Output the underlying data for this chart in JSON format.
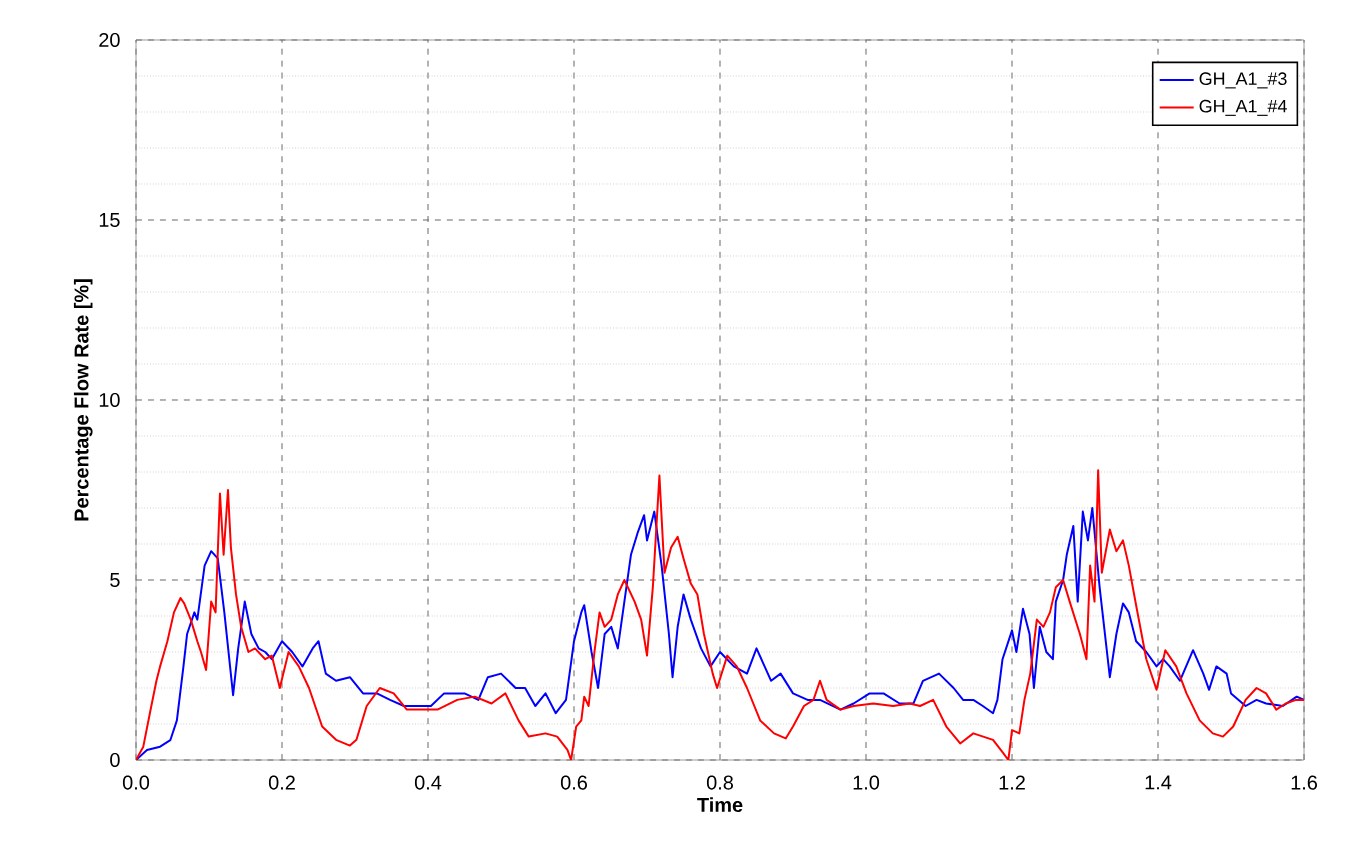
{
  "chart_data": {
    "type": "line",
    "xlabel": "Time",
    "ylabel": "Percentage Flow Rate [%]",
    "xlim": [
      0,
      1.6
    ],
    "ylim": [
      0,
      20
    ],
    "xticks": [
      {
        "value": 0,
        "label": "0.0"
      },
      {
        "value": 0.2,
        "label": "0.2"
      },
      {
        "value": 0.4,
        "label": "0.4"
      },
      {
        "value": 0.6,
        "label": "0.6"
      },
      {
        "value": 0.8,
        "label": "0.8"
      },
      {
        "value": 1.0,
        "label": "1.0"
      },
      {
        "value": 1.2,
        "label": "1.2"
      },
      {
        "value": 1.4,
        "label": "1.4"
      },
      {
        "value": 1.6,
        "label": "1.6"
      }
    ],
    "yticks": [
      0,
      5,
      10,
      15,
      20
    ],
    "grid": true,
    "legend": "top right",
    "marker": "none",
    "line_style": "solid",
    "series": [
      {
        "name": "GH_A1_#3",
        "color": "#0000ff",
        "x": [
          0,
          0.015,
          0.033,
          0.047,
          0.056,
          0.065,
          0.07,
          0.08,
          0.084,
          0.094,
          0.103,
          0.112,
          0.121,
          0.133,
          0.14,
          0.149,
          0.158,
          0.168,
          0.177,
          0.186,
          0.2,
          0.214,
          0.228,
          0.242,
          0.25,
          0.26,
          0.274,
          0.293,
          0.311,
          0.33,
          0.348,
          0.367,
          0.385,
          0.404,
          0.422,
          0.45,
          0.469,
          0.482,
          0.5,
          0.52,
          0.533,
          0.547,
          0.561,
          0.575,
          0.589,
          0.6,
          0.61,
          0.614,
          0.624,
          0.633,
          0.642,
          0.651,
          0.66,
          0.669,
          0.678,
          0.687,
          0.696,
          0.7,
          0.71,
          0.72,
          0.73,
          0.735,
          0.742,
          0.75,
          0.76,
          0.774,
          0.787,
          0.8,
          0.819,
          0.837,
          0.85,
          0.87,
          0.883,
          0.9,
          0.92,
          0.937,
          0.965,
          0.983,
          1.005,
          1.024,
          1.046,
          1.065,
          1.078,
          1.1,
          1.12,
          1.133,
          1.147,
          1.16,
          1.174,
          1.18,
          1.187,
          1.2,
          1.206,
          1.215,
          1.224,
          1.23,
          1.238,
          1.247,
          1.256,
          1.26,
          1.27,
          1.275,
          1.284,
          1.29,
          1.297,
          1.304,
          1.31,
          1.32,
          1.334,
          1.343,
          1.352,
          1.36,
          1.37,
          1.384,
          1.398,
          1.407,
          1.416,
          1.43,
          1.448,
          1.462,
          1.47,
          1.48,
          1.494,
          1.5,
          1.52,
          1.535,
          1.548,
          1.571,
          1.59,
          1.6
        ],
        "values": [
          0,
          0.28,
          0.37,
          0.55,
          1.1,
          2.6,
          3.5,
          4.1,
          3.9,
          5.4,
          5.8,
          5.6,
          4.1,
          1.8,
          3.1,
          4.4,
          3.5,
          3.1,
          3.0,
          2.8,
          3.3,
          3.0,
          2.6,
          3.1,
          3.3,
          2.4,
          2.2,
          2.3,
          1.85,
          1.85,
          1.67,
          1.5,
          1.5,
          1.5,
          1.85,
          1.85,
          1.67,
          2.3,
          2.4,
          2.0,
          2.0,
          1.5,
          1.85,
          1.3,
          1.67,
          3.3,
          4.1,
          4.3,
          3.0,
          2.0,
          3.5,
          3.7,
          3.1,
          4.4,
          5.7,
          6.3,
          6.8,
          6.1,
          6.9,
          5.4,
          3.5,
          2.3,
          3.7,
          4.6,
          3.9,
          3.1,
          2.6,
          3.0,
          2.6,
          2.4,
          3.1,
          2.2,
          2.4,
          1.85,
          1.67,
          1.67,
          1.4,
          1.57,
          1.85,
          1.85,
          1.57,
          1.57,
          2.2,
          2.4,
          2.0,
          1.67,
          1.67,
          1.5,
          1.3,
          1.67,
          2.8,
          3.6,
          3.0,
          4.2,
          3.5,
          2.0,
          3.7,
          3.0,
          2.8,
          4.4,
          5.0,
          5.7,
          6.5,
          4.4,
          6.9,
          6.1,
          7.0,
          4.8,
          2.3,
          3.5,
          4.35,
          4.1,
          3.3,
          3.0,
          2.6,
          2.8,
          2.6,
          2.2,
          3.05,
          2.4,
          1.95,
          2.6,
          2.4,
          1.85,
          1.5,
          1.67,
          1.57,
          1.5,
          1.76,
          1.67
        ]
      },
      {
        "name": "GH_A1_#4",
        "color": "#ff0000",
        "x": [
          0,
          0.01,
          0.019,
          0.028,
          0.033,
          0.043,
          0.052,
          0.061,
          0.066,
          0.075,
          0.084,
          0.089,
          0.096,
          0.103,
          0.109,
          0.115,
          0.12,
          0.126,
          0.13,
          0.137,
          0.144,
          0.154,
          0.163,
          0.177,
          0.186,
          0.197,
          0.209,
          0.223,
          0.237,
          0.255,
          0.274,
          0.293,
          0.302,
          0.316,
          0.334,
          0.353,
          0.371,
          0.39,
          0.413,
          0.44,
          0.464,
          0.487,
          0.506,
          0.524,
          0.538,
          0.561,
          0.577,
          0.591,
          0.596,
          0.603,
          0.61,
          0.614,
          0.62,
          0.628,
          0.635,
          0.642,
          0.651,
          0.66,
          0.669,
          0.683,
          0.692,
          0.7,
          0.708,
          0.717,
          0.724,
          0.733,
          0.742,
          0.75,
          0.76,
          0.769,
          0.778,
          0.79,
          0.796,
          0.81,
          0.823,
          0.837,
          0.855,
          0.874,
          0.89,
          0.9,
          0.915,
          0.928,
          0.937,
          0.946,
          0.965,
          0.983,
          1.01,
          1.037,
          1.06,
          1.074,
          1.092,
          1.11,
          1.129,
          1.147,
          1.174,
          1.188,
          1.195,
          1.2,
          1.21,
          1.217,
          1.225,
          1.234,
          1.243,
          1.252,
          1.26,
          1.27,
          1.279,
          1.293,
          1.302,
          1.307,
          1.313,
          1.318,
          1.323,
          1.334,
          1.343,
          1.352,
          1.36,
          1.37,
          1.384,
          1.398,
          1.41,
          1.425,
          1.439,
          1.457,
          1.475,
          1.489,
          1.503,
          1.52,
          1.535,
          1.548,
          1.562,
          1.575,
          1.589,
          1.6
        ],
        "values": [
          0,
          0.37,
          1.3,
          2.2,
          2.6,
          3.3,
          4.1,
          4.5,
          4.35,
          3.9,
          3.3,
          3.0,
          2.5,
          4.4,
          4.1,
          7.4,
          5.7,
          7.5,
          5.9,
          4.6,
          3.7,
          3.0,
          3.1,
          2.8,
          2.9,
          2.0,
          3.0,
          2.6,
          2.0,
          0.93,
          0.56,
          0.4,
          0.56,
          1.5,
          2.0,
          1.85,
          1.4,
          1.4,
          1.4,
          1.67,
          1.76,
          1.57,
          1.85,
          1.1,
          0.65,
          0.74,
          0.65,
          0.28,
          0.0,
          0.93,
          1.1,
          1.76,
          1.5,
          3.0,
          4.1,
          3.7,
          3.9,
          4.6,
          5.0,
          4.4,
          3.9,
          2.9,
          4.8,
          7.9,
          5.2,
          5.9,
          6.2,
          5.6,
          4.9,
          4.6,
          3.5,
          2.4,
          2.0,
          2.9,
          2.6,
          2.0,
          1.1,
          0.74,
          0.6,
          0.93,
          1.5,
          1.67,
          2.2,
          1.67,
          1.4,
          1.5,
          1.57,
          1.5,
          1.57,
          1.5,
          1.67,
          0.93,
          0.46,
          0.74,
          0.56,
          0.19,
          0,
          0.83,
          0.74,
          1.67,
          2.4,
          3.9,
          3.7,
          4.1,
          4.8,
          5.0,
          4.4,
          3.5,
          2.8,
          5.4,
          4.4,
          8.05,
          5.2,
          6.4,
          5.8,
          6.1,
          5.4,
          4.3,
          2.8,
          1.95,
          3.05,
          2.6,
          1.85,
          1.1,
          0.74,
          0.65,
          0.93,
          1.67,
          2.0,
          1.85,
          1.4,
          1.57,
          1.67,
          1.67
        ]
      }
    ]
  }
}
